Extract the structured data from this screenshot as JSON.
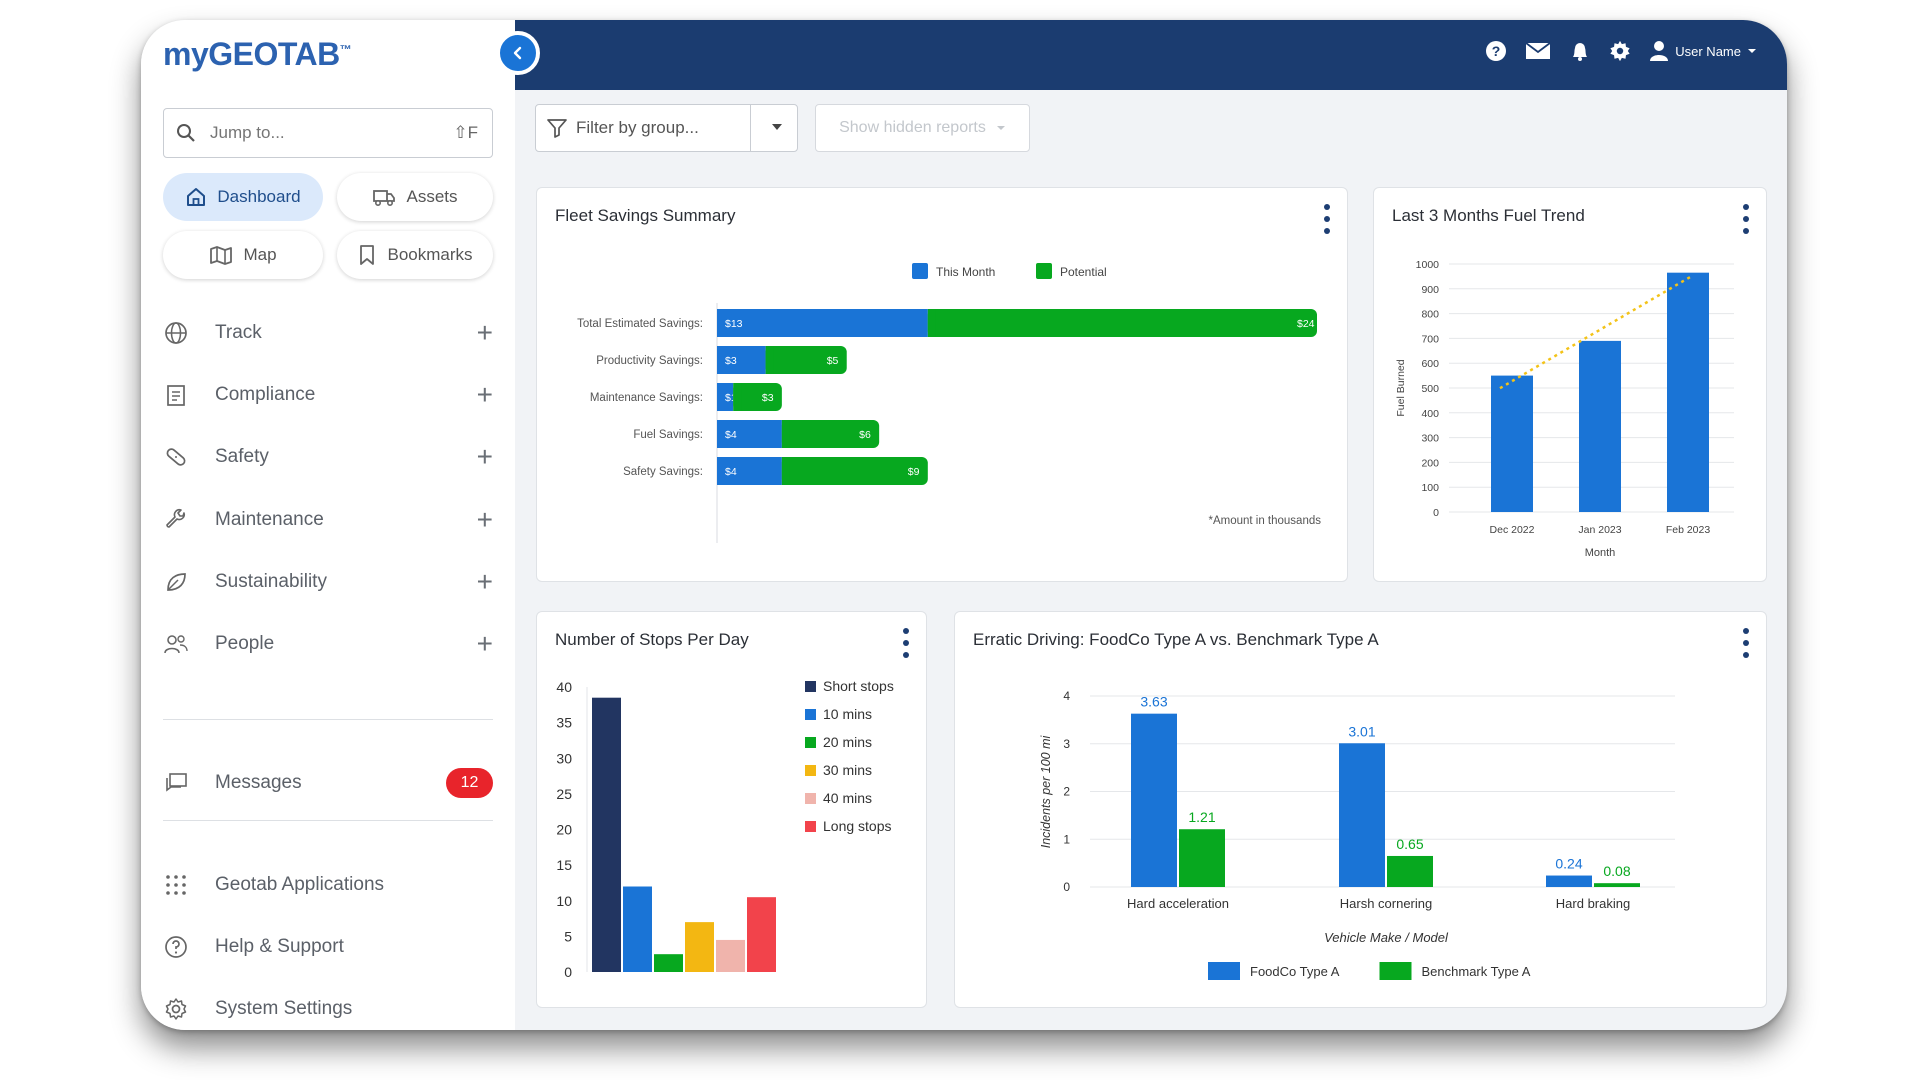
{
  "app": {
    "logo_my": "my",
    "logo_brand": "GEOTAB",
    "logo_tm": "™"
  },
  "search": {
    "placeholder": "Jump to...",
    "shortcut": "⇧F"
  },
  "quick": {
    "dashboard": "Dashboard",
    "assets": "Assets",
    "map": "Map",
    "bookmarks": "Bookmarks"
  },
  "nav": {
    "track": "Track",
    "compliance": "Compliance",
    "safety": "Safety",
    "maintenance": "Maintenance",
    "sustainability": "Sustainability",
    "people": "People",
    "messages": "Messages",
    "messages_count": "12",
    "geotab_apps": "Geotab Applications",
    "help": "Help & Support",
    "settings": "System Settings"
  },
  "topbar": {
    "user_name": "User Name"
  },
  "filterbar": {
    "filter_placeholder": "Filter by group...",
    "hidden_reports": "Show hidden reports"
  },
  "colors": {
    "blue": "#1a74d6",
    "green": "#07a81f",
    "navy": "#1b3c70",
    "badge": "#e8242b"
  },
  "cards": {
    "fleet": {
      "title": "Fleet Savings Summary",
      "note": "*Amount in thousands"
    },
    "fuel": {
      "title": "Last 3 Months Fuel Trend"
    },
    "stops": {
      "title": "Number of Stops Per Day"
    },
    "erratic": {
      "title": "Erratic Driving: FoodCo Type A vs. Benchmark Type A"
    }
  },
  "chart_data": [
    {
      "id": "fleet",
      "type": "bar",
      "orientation": "horizontal",
      "stacked": true,
      "categories": [
        "Total Estimated Savings:",
        "Productivity Savings:",
        "Maintenance Savings:",
        "Fuel Savings:",
        "Safety Savings:"
      ],
      "series": [
        {
          "name": "This Month",
          "color": "#1a74d6",
          "values": [
            13,
            3,
            1,
            4,
            4
          ],
          "labels": [
            "$13",
            "$3",
            "$1",
            "$4",
            "$4"
          ]
        },
        {
          "name": "Potential",
          "color": "#07a81f",
          "values": [
            24,
            5,
            3,
            6,
            9
          ],
          "labels": [
            "$24",
            "$5",
            "$3",
            "$6",
            "$9"
          ]
        }
      ],
      "legend_position": "top"
    },
    {
      "id": "fuel",
      "type": "bar",
      "categories": [
        "Dec 2022",
        "Jan 2023",
        "Feb 2023"
      ],
      "values": [
        550,
        690,
        965
      ],
      "color": "#1a74d6",
      "trendline": true,
      "xlabel": "Month",
      "ylabel": "Fuel Burned",
      "ylim": [
        0,
        1000
      ],
      "yticks": [
        0,
        100,
        200,
        300,
        400,
        500,
        600,
        700,
        800,
        900,
        1000
      ]
    },
    {
      "id": "stops",
      "type": "bar",
      "categories": [
        "Short stops",
        "10 mins",
        "20 mins",
        "30 mins",
        "40 mins",
        "Long stops"
      ],
      "values": [
        38.5,
        12,
        2.5,
        7,
        4.5,
        10.5
      ],
      "colors": [
        "#223561",
        "#1a74d6",
        "#07a81f",
        "#f3b712",
        "#f0b4ac",
        "#f2434b"
      ],
      "ylim": [
        0,
        40
      ],
      "yticks": [
        0,
        5,
        10,
        15,
        20,
        25,
        30,
        35,
        40
      ],
      "legend_position": "right"
    },
    {
      "id": "erratic",
      "type": "bar",
      "categories": [
        "Hard acceleration",
        "Harsh cornering",
        "Hard braking"
      ],
      "series": [
        {
          "name": "FoodCo Type A",
          "color": "#1a74d6",
          "values": [
            3.63,
            3.01,
            0.24
          ]
        },
        {
          "name": "Benchmark Type A",
          "color": "#07a81f",
          "values": [
            1.21,
            0.65,
            0.08
          ]
        }
      ],
      "xlabel": "Vehicle Make / Model",
      "ylabel": "Incidents per 100 mi",
      "ylim": [
        0,
        4
      ],
      "yticks": [
        0,
        1,
        2,
        3,
        4
      ],
      "legend_position": "bottom"
    }
  ]
}
